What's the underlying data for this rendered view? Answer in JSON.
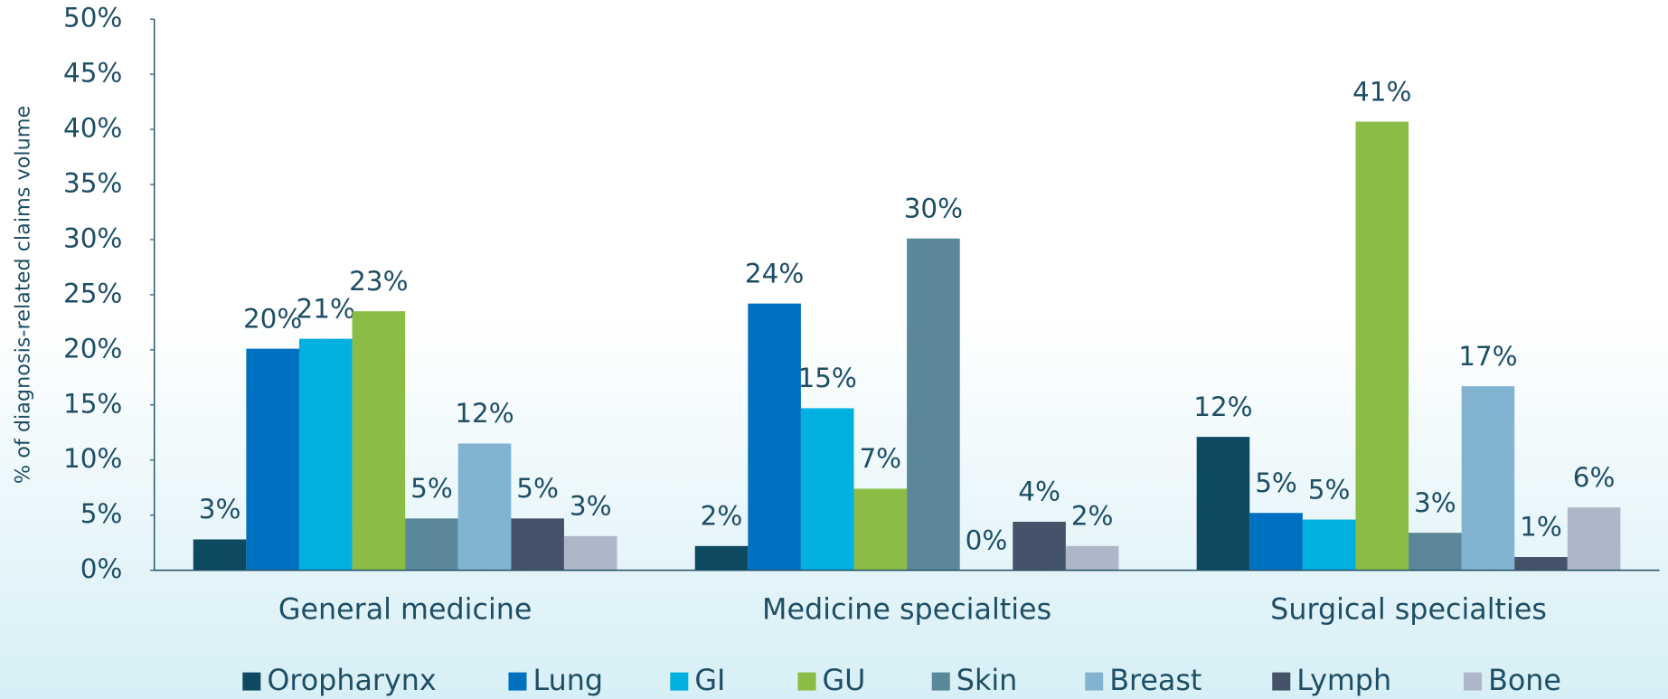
{
  "chart_data": {
    "type": "bar",
    "y_label": "% of diagnosis-related claims volume",
    "categories": [
      "General medicine",
      "Medicine specialties",
      "Surgical specialties"
    ],
    "series": [
      {
        "name": "Oropharynx",
        "color": "#0d4a62",
        "values": [
          2.8,
          2.2,
          12.1
        ],
        "value_labels": [
          "3%",
          "2%",
          "12%"
        ]
      },
      {
        "name": "Lung",
        "color": "#0070c0",
        "values": [
          20.1,
          24.2,
          5.2
        ],
        "value_labels": [
          "20%",
          "24%",
          "5%"
        ]
      },
      {
        "name": "GI",
        "color": "#00b0e0",
        "values": [
          21.0,
          14.7,
          4.6
        ],
        "value_labels": [
          "21%",
          "15%",
          "5%"
        ]
      },
      {
        "name": "GU",
        "color": "#8bbd46",
        "values": [
          23.5,
          7.4,
          40.7
        ],
        "value_labels": [
          "23%",
          "7%",
          "41%"
        ]
      },
      {
        "name": "Skin",
        "color": "#5a8799",
        "values": [
          4.7,
          30.1,
          3.4
        ],
        "value_labels": [
          "5%",
          "30%",
          "3%"
        ]
      },
      {
        "name": "Breast",
        "color": "#82b4d2",
        "values": [
          11.5,
          0,
          16.7
        ],
        "value_labels": [
          "12%",
          "0%",
          "17%"
        ]
      },
      {
        "name": "Lymph",
        "color": "#45536a",
        "values": [
          4.7,
          4.4,
          1.2
        ],
        "value_labels": [
          "5%",
          "4%",
          "1%"
        ]
      },
      {
        "name": "Bone",
        "color": "#aeb7c8",
        "values": [
          3.1,
          2.2,
          5.7
        ],
        "value_labels": [
          "3%",
          "2%",
          "6%"
        ]
      }
    ],
    "ylim": [
      0,
      50
    ],
    "yticks": [
      {
        "value": 0,
        "label": "0%"
      },
      {
        "value": 5,
        "label": "5%"
      },
      {
        "value": 10,
        "label": "10%"
      },
      {
        "value": 15,
        "label": "15%"
      },
      {
        "value": 20,
        "label": "20%"
      },
      {
        "value": 25,
        "label": "25%"
      },
      {
        "value": 30,
        "label": "30%"
      },
      {
        "value": 35,
        "label": "35%"
      },
      {
        "value": 40,
        "label": "40%"
      },
      {
        "value": 45,
        "label": "45%"
      },
      {
        "value": 50,
        "label": "50%"
      }
    ],
    "legend": "bottom"
  }
}
